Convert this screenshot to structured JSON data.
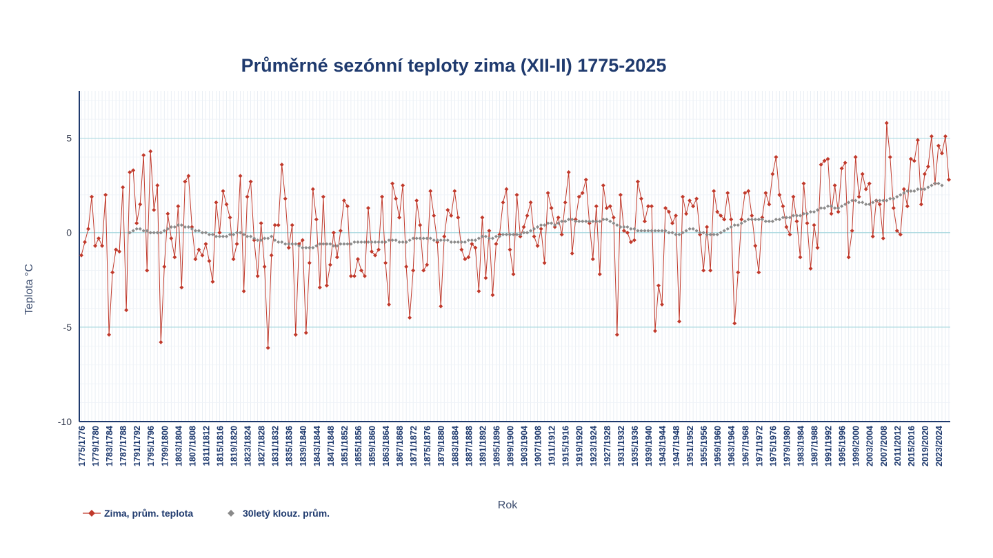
{
  "chart_data": {
    "type": "line",
    "title": "Průměrné sezónní teploty zima (XII-II) 1775-2025",
    "xlabel": "Rok",
    "ylabel": "Teplota  °C",
    "ylim": [
      -10,
      7.5
    ],
    "yticks": [
      5,
      0,
      -5,
      -10
    ],
    "grid": true,
    "legend_position": "bottom-left",
    "categories_start_year": 1775,
    "x_tick_labels": [
      "1775/1776",
      "1779/1780",
      "1783/1784",
      "1787/1788",
      "1791/1792",
      "1795/1796",
      "1799/1800",
      "1803/1804",
      "1807/1808",
      "1811/1812",
      "1815/1816",
      "1819/1820",
      "1823/1824",
      "1827/1828",
      "1831/1832",
      "1835/1836",
      "1839/1840",
      "1843/1844",
      "1847/1848",
      "1851/1852",
      "1855/1856",
      "1859/1860",
      "1863/1864",
      "1867/1868",
      "1871/1872",
      "1875/1876",
      "1879/1880",
      "1883/1884",
      "1887/1888",
      "1891/1892",
      "1895/1896",
      "1899/1900",
      "1903/1904",
      "1907/1908",
      "1911/1912",
      "1915/1916",
      "1919/1920",
      "1923/1924",
      "1927/1928",
      "1931/1932",
      "1935/1936",
      "1939/1940",
      "1943/1944",
      "1947/1948",
      "1951/1952",
      "1955/1956",
      "1959/1960",
      "1963/1964",
      "1967/1968",
      "1971/1972",
      "1975/1976",
      "1979/1980",
      "1983/1984",
      "1987/1988",
      "1991/1992",
      "1995/1996",
      "1999/2000",
      "2003/2004",
      "2007/2008",
      "2011/2012",
      "2015/2016",
      "2019/2020",
      "2023/2024"
    ],
    "series": [
      {
        "name": "Zima, prům. teplota",
        "color": "#c0392b",
        "marker": "diamond",
        "values": [
          -1.2,
          -0.5,
          0.2,
          1.9,
          -0.7,
          -0.3,
          -0.7,
          2.0,
          -5.4,
          -2.1,
          -0.9,
          -1.0,
          2.4,
          -4.1,
          3.2,
          3.3,
          0.5,
          1.5,
          4.1,
          -2.0,
          4.3,
          1.2,
          2.5,
          -5.8,
          -1.8,
          1.0,
          -0.3,
          -1.3,
          1.4,
          -2.9,
          2.7,
          3.0,
          0.3,
          -1.4,
          -0.9,
          -1.2,
          -0.6,
          -1.5,
          -2.6,
          1.6,
          0.0,
          2.2,
          1.5,
          0.8,
          -1.4,
          -0.6,
          3.0,
          -3.1,
          1.9,
          2.7,
          -0.4,
          -2.3,
          0.5,
          -1.8,
          -6.1,
          -1.2,
          0.4,
          0.4,
          3.6,
          1.8,
          -0.8,
          0.4,
          -5.4,
          -0.6,
          -0.4,
          -5.3,
          -1.6,
          2.3,
          0.7,
          -2.9,
          1.9,
          -2.8,
          -1.7,
          0.0,
          -1.3,
          0.1,
          1.7,
          1.4,
          -2.3,
          -2.3,
          -1.4,
          -2.0,
          -2.3,
          1.3,
          -1.0,
          -1.2,
          -0.9,
          1.9,
          -1.6,
          -3.8,
          2.6,
          1.8,
          0.8,
          2.5,
          -1.8,
          -4.5,
          -2.0,
          1.7,
          0.4,
          -2.0,
          -1.7,
          2.2,
          0.9,
          -0.5,
          -3.9,
          -0.2,
          1.2,
          0.9,
          2.2,
          0.8,
          -0.9,
          -1.4,
          -1.3,
          -0.6,
          -0.8,
          -3.1,
          0.8,
          -2.4,
          0.1,
          -3.3,
          -0.6,
          -0.1,
          1.6,
          2.3,
          -0.9,
          -2.2,
          2.0,
          -0.2,
          0.3,
          0.9,
          1.6,
          -0.2,
          -0.7,
          0.2,
          -1.6,
          2.1,
          1.3,
          0.3,
          0.8,
          -0.1,
          1.6,
          3.2,
          -1.1,
          0.7,
          1.9,
          2.1,
          2.8,
          0.5,
          -1.4,
          1.4,
          -2.2,
          2.5,
          1.3,
          1.4,
          0.8,
          -5.4,
          2.0,
          0.1,
          0.0,
          -0.5,
          -0.4,
          2.7,
          1.8,
          0.6,
          1.4,
          1.4,
          -5.2,
          -2.8,
          -3.8,
          1.3,
          1.1,
          0.5,
          0.9,
          -4.7,
          1.9,
          1.0,
          1.7,
          1.4,
          1.8,
          -0.1,
          -2.0,
          0.3,
          -2.0,
          2.2,
          1.1,
          0.9,
          0.7,
          2.1,
          0.7,
          -4.8,
          -2.1,
          0.7,
          2.1,
          2.2,
          0.9,
          -0.7,
          -2.1,
          0.8,
          2.1,
          1.5,
          3.1,
          4.0,
          2.0,
          1.4,
          0.3,
          -0.1,
          1.9,
          0.6,
          -1.3,
          2.6,
          0.5,
          -1.9,
          0.4,
          -0.8,
          3.6,
          3.8,
          3.9,
          1.0,
          2.5,
          1.1,
          3.4,
          3.7,
          -1.3,
          0.1,
          4.0,
          1.9,
          3.1,
          2.3,
          2.6,
          -0.2,
          1.7,
          1.5,
          -0.3,
          5.8,
          4.0,
          1.3,
          0.1,
          -0.1,
          2.3,
          1.4,
          3.9,
          3.8,
          4.9,
          1.5,
          3.1,
          3.5,
          5.1,
          2.6,
          4.6,
          4.2,
          5.1,
          2.8
        ]
      },
      {
        "name": "30letý klouz. prům.",
        "color": "#8a8a8a",
        "marker": "diamond",
        "start_offset": 14,
        "values": [
          0.0,
          0.1,
          0.2,
          0.2,
          0.1,
          0.1,
          0.0,
          0.0,
          0.0,
          0.0,
          0.1,
          0.2,
          0.3,
          0.3,
          0.4,
          0.4,
          0.3,
          0.3,
          0.2,
          0.1,
          0.1,
          0.0,
          0.0,
          -0.1,
          -0.1,
          -0.2,
          -0.2,
          -0.2,
          -0.2,
          -0.1,
          -0.1,
          0.0,
          0.0,
          -0.1,
          -0.2,
          -0.2,
          -0.3,
          -0.4,
          -0.4,
          -0.3,
          -0.3,
          -0.2,
          -0.4,
          -0.5,
          -0.5,
          -0.6,
          -0.6,
          -0.6,
          -0.6,
          -0.7,
          -0.8,
          -0.8,
          -0.8,
          -0.8,
          -0.7,
          -0.6,
          -0.6,
          -0.6,
          -0.6,
          -0.7,
          -0.7,
          -0.6,
          -0.6,
          -0.6,
          -0.6,
          -0.5,
          -0.5,
          -0.5,
          -0.5,
          -0.5,
          -0.5,
          -0.5,
          -0.5,
          -0.5,
          -0.5,
          -0.4,
          -0.4,
          -0.4,
          -0.5,
          -0.5,
          -0.5,
          -0.4,
          -0.3,
          -0.3,
          -0.3,
          -0.3,
          -0.3,
          -0.3,
          -0.4,
          -0.4,
          -0.4,
          -0.4,
          -0.4,
          -0.5,
          -0.5,
          -0.5,
          -0.5,
          -0.5,
          -0.4,
          -0.4,
          -0.4,
          -0.3,
          -0.2,
          -0.2,
          -0.3,
          -0.3,
          -0.2,
          -0.2,
          -0.1,
          -0.1,
          -0.1,
          -0.1,
          -0.1,
          -0.1,
          0.0,
          0.0,
          0.1,
          0.2,
          0.3,
          0.4,
          0.4,
          0.5,
          0.5,
          0.4,
          0.5,
          0.6,
          0.6,
          0.7,
          0.7,
          0.6,
          0.6,
          0.6,
          0.6,
          0.6,
          0.6,
          0.6,
          0.6,
          0.7,
          0.7,
          0.6,
          0.5,
          0.4,
          0.3,
          0.3,
          0.3,
          0.2,
          0.2,
          0.1,
          0.1,
          0.1,
          0.1,
          0.1,
          0.1,
          0.1,
          0.1,
          0.1,
          0.0,
          0.0,
          -0.1,
          -0.1,
          0.0,
          0.1,
          0.2,
          0.2,
          0.1,
          0.0,
          0.0,
          -0.1,
          -0.1,
          -0.1,
          -0.1,
          0.0,
          0.1,
          0.2,
          0.3,
          0.4,
          0.4,
          0.5,
          0.6,
          0.7,
          0.7,
          0.7,
          0.7,
          0.7,
          0.6,
          0.6,
          0.6,
          0.7,
          0.7,
          0.8,
          0.8,
          0.8,
          0.9,
          0.9,
          0.9,
          1.0,
          1.0,
          1.1,
          1.1,
          1.2,
          1.3,
          1.3,
          1.4,
          1.4,
          1.3,
          1.3,
          1.4,
          1.5,
          1.6,
          1.7,
          1.7,
          1.6,
          1.6,
          1.5,
          1.5,
          1.6,
          1.7,
          1.7,
          1.7,
          1.7,
          1.8,
          1.8,
          1.9,
          2.0,
          2.1,
          2.2,
          2.2,
          2.2,
          2.3,
          2.3,
          2.3,
          2.4,
          2.5,
          2.6,
          2.6,
          2.5
        ]
      }
    ]
  },
  "legend": {
    "series1_label": "Zima, prům. teplota",
    "series2_label": "30letý klouz. prům."
  }
}
